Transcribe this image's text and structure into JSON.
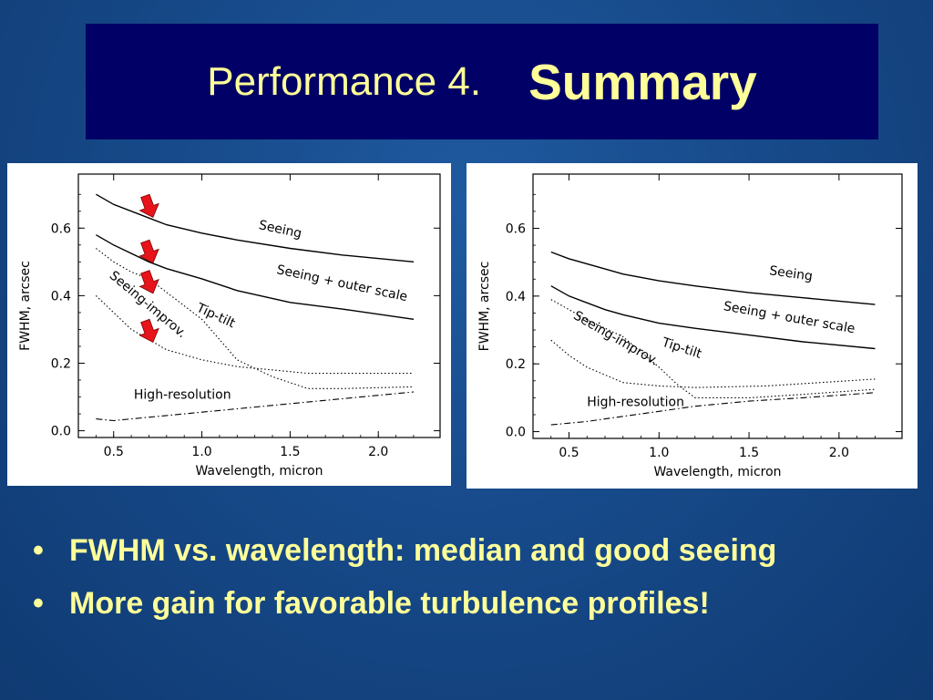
{
  "slide": {
    "title_part1": "Performance 4.",
    "title_part2": "Summary"
  },
  "bullets": [
    {
      "marker": "•",
      "text": "FWHM vs. wavelength: median and good seeing"
    },
    {
      "marker": "•",
      "text": "More gain for favorable turbulence profiles!"
    }
  ],
  "colors": {
    "title_box": "#000066",
    "title_text": "#ffff99",
    "bullet_text": "#ffff99",
    "arrow": "#e8141b"
  },
  "chart_data": [
    {
      "type": "line",
      "xlabel": "Wavelength, micron",
      "ylabel": "FWHM, arcsec",
      "xlim": [
        0.3,
        2.35
      ],
      "ylim": [
        -0.02,
        0.76
      ],
      "xticks": [
        "0.5",
        "1.0",
        "1.5",
        "2.0"
      ],
      "xtick_values": [
        0.5,
        1.0,
        1.5,
        2.0
      ],
      "yticks": [
        "0.0",
        "0.2",
        "0.4",
        "0.6"
      ],
      "ytick_values": [
        0.0,
        0.2,
        0.4,
        0.6
      ],
      "series": [
        {
          "name": "Seeing",
          "style": "solid",
          "points": [
            [
              0.4,
              0.7
            ],
            [
              0.5,
              0.67
            ],
            [
              0.7,
              0.63
            ],
            [
              0.8,
              0.61
            ],
            [
              1.0,
              0.585
            ],
            [
              1.2,
              0.565
            ],
            [
              1.5,
              0.54
            ],
            [
              1.8,
              0.52
            ],
            [
              2.2,
              0.5
            ]
          ]
        },
        {
          "name": "Seeing + outer scale",
          "style": "solid",
          "points": [
            [
              0.4,
              0.58
            ],
            [
              0.5,
              0.55
            ],
            [
              0.7,
              0.5
            ],
            [
              0.8,
              0.48
            ],
            [
              1.0,
              0.45
            ],
            [
              1.2,
              0.415
            ],
            [
              1.5,
              0.38
            ],
            [
              1.8,
              0.36
            ],
            [
              2.2,
              0.33
            ]
          ]
        },
        {
          "name": "Tip-tilt",
          "style": "dotted",
          "points": [
            [
              0.4,
              0.54
            ],
            [
              0.5,
              0.5
            ],
            [
              0.6,
              0.47
            ],
            [
              0.7,
              0.45
            ],
            [
              0.8,
              0.41
            ],
            [
              1.0,
              0.33
            ],
            [
              1.2,
              0.21
            ],
            [
              1.4,
              0.16
            ],
            [
              1.6,
              0.125
            ],
            [
              1.8,
              0.125
            ],
            [
              2.2,
              0.13
            ]
          ]
        },
        {
          "name": "Seeing-improv.",
          "style": "dotted",
          "points": [
            [
              0.4,
              0.4
            ],
            [
              0.5,
              0.35
            ],
            [
              0.6,
              0.3
            ],
            [
              0.7,
              0.27
            ],
            [
              0.8,
              0.24
            ],
            [
              1.0,
              0.21
            ],
            [
              1.2,
              0.19
            ],
            [
              1.6,
              0.17
            ],
            [
              2.2,
              0.17
            ]
          ]
        },
        {
          "name": "High-resolution",
          "style": "dashdot",
          "points": [
            [
              0.4,
              0.035
            ],
            [
              0.5,
              0.03
            ],
            [
              0.6,
              0.035
            ],
            [
              0.8,
              0.045
            ],
            [
              1.0,
              0.055
            ],
            [
              1.2,
              0.065
            ],
            [
              1.5,
              0.08
            ],
            [
              1.8,
              0.095
            ],
            [
              2.2,
              0.115
            ]
          ]
        }
      ],
      "annotations": [
        {
          "text": "Seeing",
          "x": 1.44,
          "y": 0.585,
          "rotate": 12
        },
        {
          "text": "Seeing + outer scale",
          "x": 1.79,
          "y": 0.425,
          "rotate": 12
        },
        {
          "text": "Tip-tilt",
          "x": 1.07,
          "y": 0.33,
          "rotate": 25
        },
        {
          "text": "Seeing-improv.",
          "x": 0.68,
          "y": 0.365,
          "rotate": 40
        },
        {
          "text": "High-resolution",
          "x": 0.89,
          "y": 0.095,
          "rotate": 0
        }
      ],
      "markers": [
        {
          "type": "arrow",
          "x": 0.7,
          "y": 0.665
        },
        {
          "type": "arrow",
          "x": 0.7,
          "y": 0.53
        },
        {
          "type": "arrow",
          "x": 0.7,
          "y": 0.44
        },
        {
          "type": "arrow",
          "x": 0.7,
          "y": 0.295
        }
      ]
    },
    {
      "type": "line",
      "xlabel": "Wavelength, micron",
      "ylabel": "FWHM, arcsec",
      "xlim": [
        0.3,
        2.35
      ],
      "ylim": [
        -0.02,
        0.76
      ],
      "xticks": [
        "0.5",
        "1.0",
        "1.5",
        "2.0"
      ],
      "xtick_values": [
        0.5,
        1.0,
        1.5,
        2.0
      ],
      "yticks": [
        "0.0",
        "0.2",
        "0.4",
        "0.6"
      ],
      "ytick_values": [
        0.0,
        0.2,
        0.4,
        0.6
      ],
      "series": [
        {
          "name": "Seeing",
          "style": "solid",
          "points": [
            [
              0.4,
              0.53
            ],
            [
              0.5,
              0.51
            ],
            [
              0.7,
              0.48
            ],
            [
              0.8,
              0.465
            ],
            [
              1.0,
              0.445
            ],
            [
              1.2,
              0.43
            ],
            [
              1.5,
              0.41
            ],
            [
              1.8,
              0.395
            ],
            [
              2.2,
              0.375
            ]
          ]
        },
        {
          "name": "Seeing + outer scale",
          "style": "solid",
          "points": [
            [
              0.4,
              0.43
            ],
            [
              0.5,
              0.4
            ],
            [
              0.7,
              0.36
            ],
            [
              0.8,
              0.345
            ],
            [
              1.0,
              0.32
            ],
            [
              1.2,
              0.305
            ],
            [
              1.5,
              0.285
            ],
            [
              1.8,
              0.265
            ],
            [
              2.2,
              0.245
            ]
          ]
        },
        {
          "name": "Tip-tilt",
          "style": "dotted",
          "points": [
            [
              0.4,
              0.39
            ],
            [
              0.5,
              0.36
            ],
            [
              0.6,
              0.33
            ],
            [
              0.8,
              0.28
            ],
            [
              1.0,
              0.19
            ],
            [
              1.1,
              0.14
            ],
            [
              1.2,
              0.1
            ],
            [
              1.5,
              0.1
            ],
            [
              1.8,
              0.11
            ],
            [
              2.2,
              0.125
            ]
          ]
        },
        {
          "name": "Seeing-improv.",
          "style": "dotted",
          "points": [
            [
              0.4,
              0.27
            ],
            [
              0.5,
              0.225
            ],
            [
              0.6,
              0.19
            ],
            [
              0.8,
              0.145
            ],
            [
              1.0,
              0.135
            ],
            [
              1.2,
              0.13
            ],
            [
              1.6,
              0.135
            ],
            [
              2.2,
              0.155
            ]
          ]
        },
        {
          "name": "High-resolution",
          "style": "dashdot",
          "points": [
            [
              0.4,
              0.02
            ],
            [
              0.6,
              0.03
            ],
            [
              0.8,
              0.045
            ],
            [
              1.0,
              0.06
            ],
            [
              1.2,
              0.075
            ],
            [
              1.5,
              0.09
            ],
            [
              1.8,
              0.1
            ],
            [
              2.2,
              0.115
            ]
          ]
        }
      ],
      "annotations": [
        {
          "text": "Seeing",
          "x": 1.73,
          "y": 0.455,
          "rotate": 8
        },
        {
          "text": "Seeing + outer scale",
          "x": 1.72,
          "y": 0.325,
          "rotate": 10
        },
        {
          "text": "Tip-tilt",
          "x": 1.12,
          "y": 0.235,
          "rotate": 18
        },
        {
          "text": "Seeing-improv.",
          "x": 0.75,
          "y": 0.265,
          "rotate": 30
        },
        {
          "text": "High-resolution",
          "x": 0.87,
          "y": 0.075,
          "rotate": 0
        }
      ],
      "markers": []
    }
  ]
}
